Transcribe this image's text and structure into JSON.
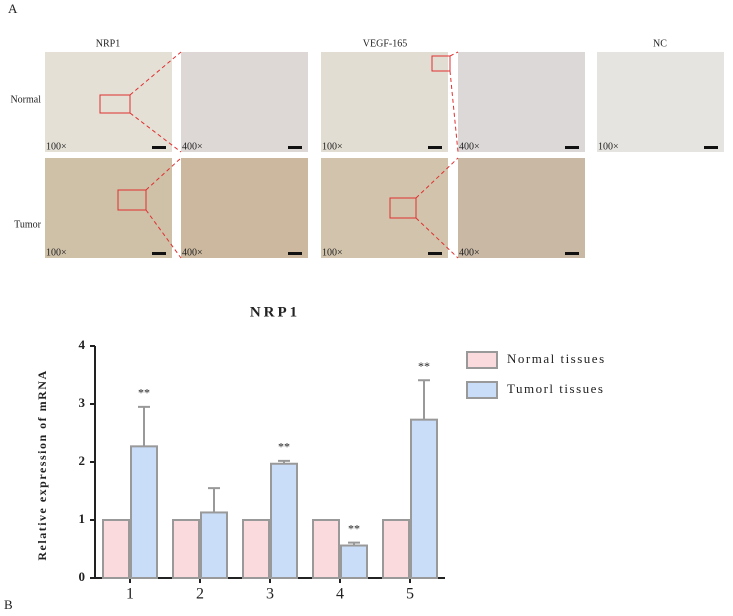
{
  "panel_a": {
    "label": "A",
    "columns": [
      "NRP1",
      "VEGF-165",
      "NC"
    ],
    "rows": [
      "Normal",
      "Tumor"
    ],
    "magnifications": [
      "100×",
      "400×",
      "100×",
      "400×",
      "100×",
      "100×",
      "400×",
      "100×",
      "400×"
    ]
  },
  "panel_b_label": "B",
  "chart_data": {
    "type": "bar",
    "title": "NRP1",
    "y_label": "Relative expression of mRNA",
    "categories": [
      "1",
      "2",
      "3",
      "4",
      "5"
    ],
    "series": [
      {
        "name": "Normal tissues",
        "color": "#fbdade",
        "values": [
          1,
          1,
          1,
          1,
          1
        ]
      },
      {
        "name": "Tumorl tissues",
        "color": "#c9dcf8",
        "values": [
          2.27,
          1.13,
          1.97,
          0.56,
          2.73
        ],
        "errors": [
          0.68,
          0.42,
          0.05,
          0.05,
          0.68
        ],
        "significance": [
          "**",
          null,
          "**",
          "**",
          "**"
        ]
      }
    ],
    "ylim": [
      0,
      4
    ],
    "yticks": [
      0,
      1,
      2,
      3,
      4
    ],
    "grid": false
  }
}
